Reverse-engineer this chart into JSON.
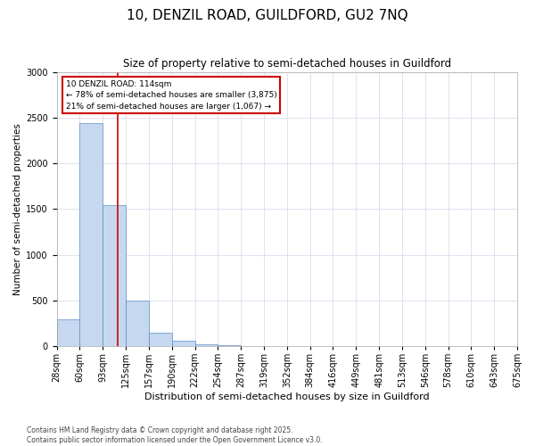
{
  "title_line1": "10, DENZIL ROAD, GUILDFORD, GU2 7NQ",
  "title_line2": "Size of property relative to semi-detached houses in Guildford",
  "xlabel": "Distribution of semi-detached houses by size in Guildford",
  "ylabel": "Number of semi-detached properties",
  "footnote1": "Contains HM Land Registry data © Crown copyright and database right 2025.",
  "footnote2": "Contains public sector information licensed under the Open Government Licence v3.0.",
  "property_label": "10 DENZIL ROAD: 114sqm",
  "smaller_label": "← 78% of semi-detached houses are smaller (3,875)",
  "larger_label": "21% of semi-detached houses are larger (1,067) →",
  "property_bin_index": 2.65,
  "bin_labels": [
    "28sqm",
    "60sqm",
    "93sqm",
    "125sqm",
    "157sqm",
    "190sqm",
    "222sqm",
    "254sqm",
    "287sqm",
    "319sqm",
    "352sqm",
    "384sqm",
    "416sqm",
    "449sqm",
    "481sqm",
    "513sqm",
    "546sqm",
    "578sqm",
    "610sqm",
    "643sqm",
    "675sqm"
  ],
  "counts": [
    290,
    2440,
    1540,
    500,
    150,
    60,
    20,
    5,
    2,
    1,
    0,
    0,
    0,
    0,
    0,
    0,
    0,
    0,
    0,
    0
  ],
  "bar_color": "#c5d8f0",
  "bar_edge_color": "#5a8fc3",
  "vline_color": "#cc0000",
  "box_edge_color": "#cc0000",
  "grid_color": "#d0d8e8",
  "background_color": "#ffffff",
  "ylim": [
    0,
    3000
  ],
  "yticks": [
    0,
    500,
    1000,
    1500,
    2000,
    2500,
    3000
  ],
  "title_fontsize": 11,
  "subtitle_fontsize": 8.5,
  "ylabel_fontsize": 7.5,
  "xlabel_fontsize": 8,
  "tick_fontsize": 7,
  "footnote_fontsize": 5.5,
  "annotation_fontsize": 6.5
}
